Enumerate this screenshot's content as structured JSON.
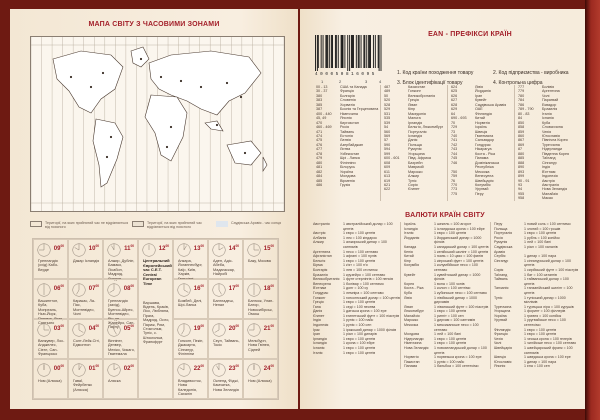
{
  "left": {
    "title": "МАПА СВІТУ З ЧАСОВИМИ ЗОНАМИ",
    "legend": [
      "Території, на яких прийнятий час не відрізняється від поясного",
      "Території, на яких прийнятий час відрізняється від поясного",
      "Саудівська Аравія - час сонця"
    ],
    "center": {
      "hour": "12",
      "min": "00",
      "title": "Центральний Європейський час C.E.T. Central European Time",
      "cities": "Варшава, Відень, Кракiв, Лісс, Любляна, Прага, Мадрид, Осло, Париж, Рим, Стокгольм, Туніс, с. Штокгольм, Франкфурт"
    },
    "zones": [
      {
        "hour": "09",
        "cities": "Гренландія (схід) Кабо-Верде"
      },
      {
        "hour": "10",
        "cities": "Дакар Ісландія"
      },
      {
        "hour": "11",
        "cities": "Алжир, Дублін, Бамако, Лісабон, Мадрид, Лондон"
      },
      {
        "hour": "13",
        "cities": "Анкара, Йоганнесбург, Каїр, Київ, Харків, Гельсінкі"
      },
      {
        "hour": "14",
        "cities": "Аден, Адіс-Абеба, Мадагаскар, Найробі"
      },
      {
        "hour": "15",
        "cities": "Баку, Москва"
      },
      {
        "hour": "06",
        "cities": "Вашингтон, Куба, Монреаль, Нью-Йорк, Панама, Ліма, Сантьяго"
      },
      {
        "hour": "07",
        "cities": "Каракас, Ла-Пас, Монтевідео, Чилі"
      },
      {
        "hour": "08",
        "cities": "Гренландія (захід), Буенос-Айрес, Монтевідео, Ріо-де-Жанейро, Сан-Паулу"
      },
      {
        "hour": "16",
        "cities": "Бомбей, Делі, Шрі-Ланка"
      },
      {
        "hour": "17",
        "cities": "Бангладеш, Непал"
      },
      {
        "hour": "18",
        "cities": "Бангкок, Улан-Батор, Новосибірськ, Омськ"
      },
      {
        "hour": "03",
        "cities": "Ванкувер, Лос-Анджелес, Сієтл, Сан-Франциско"
      },
      {
        "hour": "04",
        "cities": "Солт-Лейк-Сіті, Едмонтон"
      },
      {
        "hour": "05",
        "cities": "Вінніпег, Денвер, Мехіко, Чикаго, Гватемала"
      },
      {
        "hour": "19",
        "cities": "Гонконг, Пекін, Джакарта, Сінгапур, Філіппіни"
      },
      {
        "hour": "20",
        "cities": "Сеул, Тайвань, Токіо"
      },
      {
        "hour": "21",
        "cities": "Мельбурн, Нова Гвінея, Сідней"
      },
      {
        "hour": "00",
        "cities": "Ном (Аляска)"
      },
      {
        "hour": "01",
        "cities": "Гаваї, Фейрбенкс (Аляска)"
      },
      {
        "hour": "02",
        "cities": "Аляска"
      },
      {
        "hour": "22",
        "cities": "Владивосток, Нова Каледонія, Сахалін"
      },
      {
        "hour": "23",
        "cities": "Окленд, Фіджі, Камчатка, Нова Зеландія"
      },
      {
        "hour": "24",
        "cities": "Ном (Аляска)"
      }
    ],
    "minutes": "00"
  },
  "right": {
    "ean_title": "EAN - ПРЕФІКСИ КРАЇН",
    "barcode_digits": "4 0 0 0 5 0 8 1 6 0 9 5",
    "barcode_labels": [
      "1",
      "2",
      "3",
      "4"
    ],
    "ean_legend": [
      "1. Код країни походження товару",
      "2. Код підприємства - виробника",
      "3. Блок ідентифікації товару",
      "4. Контрольна цифра"
    ],
    "ean": [
      [
        [
          "00 - 13",
          "США та Канада"
        ],
        [
          "30 - 37",
          "Франція"
        ],
        [
          "380",
          "Болгарія"
        ],
        [
          "383",
          "Словенія"
        ],
        [
          "385",
          "Хорватія"
        ],
        [
          "387",
          "Боснія та Герцеговина"
        ],
        [
          "400 - 440",
          "Німеччина"
        ],
        [
          "45, 49",
          "Японія"
        ],
        [
          "470",
          "Киргизстан"
        ],
        [
          "460 - 469",
          "Росія"
        ],
        [
          "471",
          "Тайвань"
        ],
        [
          "474",
          "Естонія"
        ],
        [
          "475",
          "Латвія"
        ],
        [
          "476",
          "Азербайджан"
        ],
        [
          "477",
          "Литва"
        ],
        [
          "478",
          "Узбекистан"
        ],
        [
          "479",
          "Шрі - Ланка"
        ],
        [
          "480",
          "Філіппіни"
        ],
        [
          "481",
          "Білорусь"
        ],
        [
          "482",
          "Україна"
        ],
        [
          "484",
          "Молдова"
        ],
        [
          "485",
          "Вірменія"
        ],
        [
          "486",
          "Грузія"
        ]
      ],
      [
        [
          "487",
          "Казахстан"
        ],
        [
          "489",
          "Гонконг"
        ],
        [
          "50",
          "Великобританія"
        ],
        [
          "520",
          "Греція"
        ],
        [
          "528",
          "Ліван"
        ],
        [
          "529",
          "Кіпр"
        ],
        [
          "531",
          "Македонія"
        ],
        [
          "535",
          "Мальта"
        ],
        [
          "539",
          "Ірландія"
        ],
        [
          "54",
          "Бельгія, Люксембург"
        ],
        [
          "560",
          "Португалія"
        ],
        [
          "569",
          "Ісландія"
        ],
        [
          "57",
          "Данія"
        ],
        [
          "590",
          "Польща"
        ],
        [
          "594",
          "Румунія"
        ],
        [
          "599",
          "Угорщина"
        ],
        [
          "600 - 601",
          "Півд. Африка"
        ],
        [
          "608",
          "Бахрейн"
        ],
        [
          "609",
          "Маврикій"
        ],
        [
          "611",
          "Марокко"
        ],
        [
          "613",
          "Алжир"
        ],
        [
          "619",
          "Туніс"
        ],
        [
          "621",
          "Сирія"
        ],
        [
          "622",
          "Єгипет"
        ]
      ],
      [
        [
          "624",
          "Лівія"
        ],
        [
          "625",
          "Йорданія"
        ],
        [
          "626",
          "Іран"
        ],
        [
          "627",
          "Кувейт"
        ],
        [
          "628",
          "Саудівська Аравія"
        ],
        [
          "629",
          "ОАЕ"
        ],
        [
          "64",
          "Фінляндія"
        ],
        [
          "690 - 693",
          "Китай"
        ],
        [
          "70",
          "Норвегія"
        ],
        [
          "729",
          "Ізраїль"
        ],
        [
          "73",
          "Швеція"
        ],
        [
          "740",
          "Гватемала"
        ],
        [
          "741",
          "Сальвадор"
        ],
        [
          "742",
          "Гондурас"
        ],
        [
          "743",
          "Нікарагуа"
        ],
        [
          "744",
          "Коста - Ріка"
        ],
        [
          "745",
          "Панама"
        ],
        [
          "746",
          "Домініканська Республіка"
        ],
        [
          "750",
          "Мексика"
        ],
        [
          "759",
          "Венесуела"
        ],
        [
          "76",
          "Швейцарія"
        ],
        [
          "770",
          "Колумбія"
        ],
        [
          "773",
          "Уругвай"
        ],
        [
          "775",
          "Перу"
        ]
      ],
      [
        [
          "777",
          "Болівія"
        ],
        [
          "779",
          "Аргентина"
        ],
        [
          "780",
          "Чилі"
        ],
        [
          "784",
          "Парагвай"
        ],
        [
          "786",
          "Еквадор"
        ],
        [
          "789 - 790",
          "Бразилія"
        ],
        [
          "80 - 83",
          "Італія"
        ],
        [
          "84",
          "Іспанія"
        ],
        [
          "850",
          "Куба"
        ],
        [
          "858",
          "Словаччина"
        ],
        [
          "859",
          "Чехія"
        ],
        [
          "860",
          "Югославія"
        ],
        [
          "867",
          "Північна Корея"
        ],
        [
          "869",
          "Туреччина"
        ],
        [
          "87",
          "Нідерланди"
        ],
        [
          "880",
          "Південна Корея"
        ],
        [
          "885",
          "Таїланд"
        ],
        [
          "888",
          "Сінгапур"
        ],
        [
          "890",
          "Індія"
        ],
        [
          "893",
          "В'єтнам"
        ],
        [
          "899",
          "Індонезія"
        ],
        [
          "90 - 91",
          "Австрія"
        ],
        [
          "93",
          "Австралія"
        ],
        [
          "94",
          "Нова Зеландія"
        ],
        [
          "955",
          "Малайзія"
        ],
        [
          "958",
          "Макао"
        ]
      ]
    ],
    "cur_title": "ВАЛЮТИ КРАЇН СВІТУ",
    "currencies": [
      [
        [
          "Австралія",
          "1 австралійський долар = 100 центів"
        ],
        [
          "Австрія",
          "1 євро = 100 центів"
        ],
        [
          "Албанія",
          "1 лек = 100 кіндарок"
        ],
        [
          "Алжир",
          "1 алжирський динар = 100 сантимів"
        ],
        [
          "Аргентина",
          "1 песо = 100 сентаво"
        ],
        [
          "Афганістан",
          "1 афгані = 100 пулів"
        ],
        [
          "Бельгія",
          "1 євро = 100 центів"
        ],
        [
          "Бірма",
          "1 к'ят = 100 п'я"
        ],
        [
          "Болгарія",
          "1 лев = 100 стотинок"
        ],
        [
          "Бразилія",
          "1 крузейро = 100 сентаво"
        ],
        [
          "Великобританія",
          "1 фунт стерлінгів = 100 пенсів"
        ],
        [
          "Венесуела",
          "1 болівар = 100 сентимо"
        ],
        [
          "В'єтнам",
          "1 донг = 100 су"
        ],
        [
          "Гондурас",
          "1 лемпіра = 100 сентаво"
        ],
        [
          "Гонконг",
          "1 гонконгський долар = 100 центів"
        ],
        [
          "Греція",
          "1 євро = 100 центів"
        ],
        [
          "Гана",
          "1 седі = 100 песева"
        ],
        [
          "Данія",
          "1 датська крона = 100 ере"
        ],
        [
          "Єгипет",
          "1 єгипетський фунт = 100 піастрів"
        ],
        [
          "Індія",
          "1 рупія = 100 пайс"
        ],
        [
          "Індонезія",
          "1 рупія = 100 сен"
        ],
        [
          "Ірак",
          "1 іракський динар = 1000 філсів"
        ],
        [
          "Іран",
          "1 ріал = 100 динарів"
        ],
        [
          "Ірландія",
          "1 євро = 100 центів"
        ],
        [
          "Ісландія",
          "1 крона = 100 ейре"
        ],
        [
          "Іспанія",
          "1 євро = 100 центів"
        ],
        [
          "Італія",
          "1 євро = 100 центів"
        ]
      ],
      [
        [
          "Ізраїль",
          "1 шекель = 100 агорот"
        ],
        [
          "Ісландія",
          "1 ісландська крона = 100 ейре"
        ],
        [
          "Італія",
          "1 євро = 100 центів"
        ],
        [
          "Йорданія",
          "1 йорданський динар = 1000 філсів"
        ],
        [
          "Канада",
          "1 канадський долар = 100 центів"
        ],
        [
          "Кенія",
          "1 кенійський шилінг = 100 центів"
        ],
        [
          "Китай",
          "1 юань = 10 цзяо = 100 финів"
        ],
        [
          "Кіпр",
          "1 кіпрський фунт = 100 центів"
        ],
        [
          "Колумбія",
          "1 колумбійське песо = 100 сентаво"
        ],
        [
          "Кувейт",
          "1 кувейтський динар = 1000 філсів"
        ],
        [
          "Корея",
          "1 вона = 100 чонів"
        ],
        [
          "Коста - Ріка",
          "1 колон = 100 сентімо"
        ],
        [
          "Куба",
          "1 кубинське песо = 100 сентаво"
        ],
        [
          "Лівія",
          "1 лівійський динар = 1000 дирхамів"
        ],
        [
          "Ліван",
          "1 ліванський фунт = 100 піастрів"
        ],
        [
          "Люксембург",
          "1 євро = 100 центів"
        ],
        [
          "Малайзія",
          "1 рингіт = 100 сен"
        ],
        [
          "Марокко",
          "1 дирхам = 100 сантимів"
        ],
        [
          "Мексика",
          "1 мексиканське песо = 100 сентаво"
        ],
        [
          "Молдова",
          "1 лей = 100 бані"
        ],
        [
          "Нідерланди",
          "1 євро = 100 центів"
        ],
        [
          "Німеччина",
          "1 євро = 100 центів"
        ],
        [
          "Нова Зеландія",
          "1 новозеландський долар = 100 центів"
        ],
        [
          "Норвегія",
          "1 норвезька крона = 100 ере"
        ],
        [
          "Пакистан",
          "1 рупія = 100 пайс"
        ],
        [
          "Панама",
          "1 бальбоа = 100 сентесімо"
        ]
      ],
      [
        [
          "Перу",
          "1 новий соль = 100 сентимо"
        ],
        [
          "Польща",
          "1 злотий = 100 грошів"
        ],
        [
          "Португалія",
          "1 євро = 100 центів"
        ],
        [
          "Росія",
          "1 рубль = 100 копійок"
        ],
        [
          "Румунія",
          "1 лей = 100 бані"
        ],
        [
          "Саудівська Аравія",
          "1 ріал = 100 халалів"
        ],
        [
          "Сербія",
          "1 динар = 100 пара"
        ],
        [
          "Сінгапур",
          "1 сінгапурський долар = 100 центів"
        ],
        [
          "Сирія",
          "1 сирійський фунт = 100 піастрів"
        ],
        [
          "Таїланд",
          "1 бат = 100 сатангів"
        ],
        [
          "Тайвань",
          "1 тайванський долар = 100 центів"
        ],
        [
          "Танзанія",
          "1 танзанійський шилінг = 100 центів"
        ],
        [
          "Туніс",
          "1 туніський динар = 1000 міллімів"
        ],
        [
          "Туреччина",
          "1 турецька ліра = 100 курушів"
        ],
        [
          "Угорщина",
          "1 форинт = 100 філлерів"
        ],
        [
          "Україна",
          "1 гривня = 100 копійок"
        ],
        [
          "Уругвай",
          "1 уругвайське песо = 100 сентесімо"
        ],
        [
          "Фінляндія",
          "1 євро = 100 центів"
        ],
        [
          "Франція",
          "1 євро = 100 центів"
        ],
        [
          "Чехія",
          "1 чеська крона = 100 гелерів"
        ],
        [
          "Чилі",
          "1 чилійське песо = 100 сентаво"
        ],
        [
          "Швейцарія",
          "1 швейцарський франк = 100 сантимів"
        ],
        [
          "Швеція",
          "1 шведська крона = 100 ере"
        ],
        [
          "Югославія",
          "1 динар = 100 пара"
        ],
        [
          "Японія",
          "1 єна = 100 сен"
        ]
      ]
    ]
  },
  "colors": {
    "accent": "#a3202a",
    "cover": "#6e1a12",
    "paper": "#f6ecdc"
  }
}
